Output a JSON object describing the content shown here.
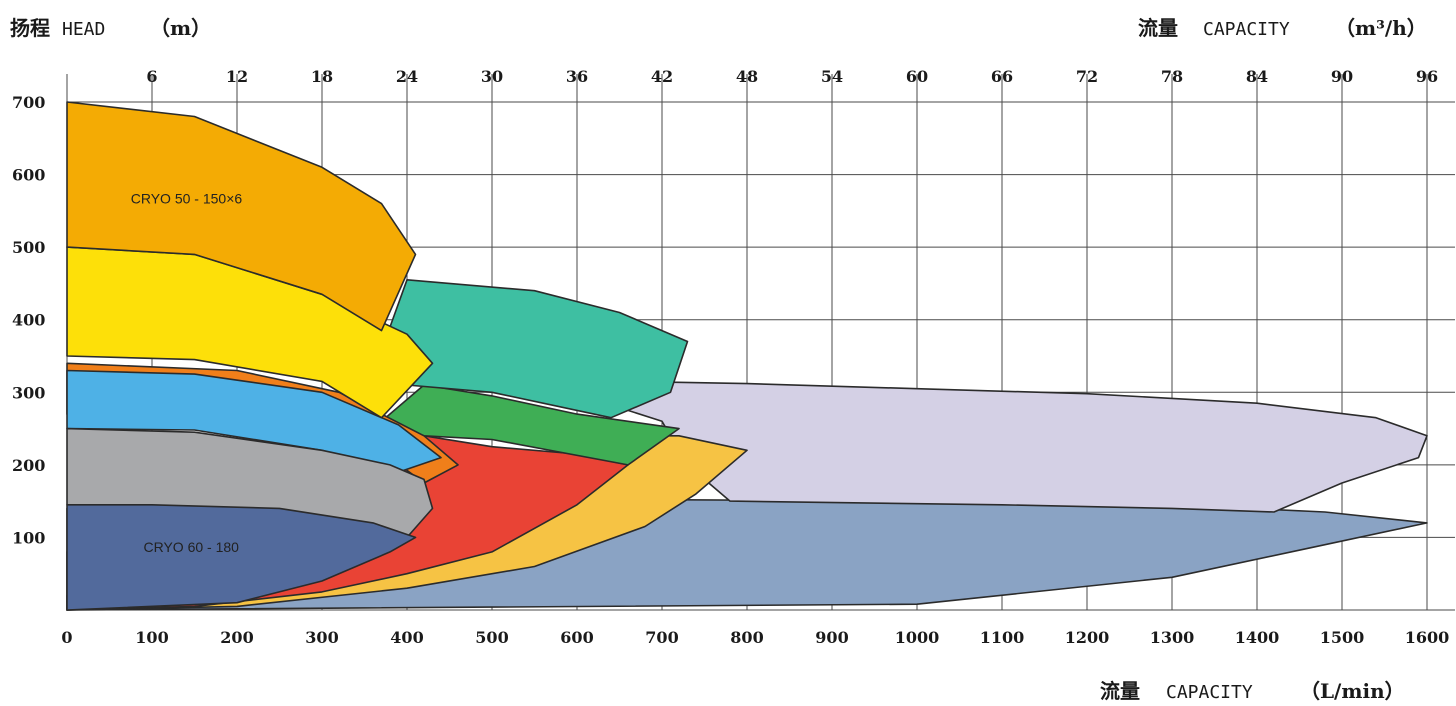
{
  "chart_data": {
    "type": "area",
    "y_axis": {
      "title_cn": "扬程",
      "title_en": "HEAD",
      "unit": "（m）",
      "range": [
        0,
        700
      ],
      "ticks": [
        100,
        200,
        300,
        400,
        500,
        600,
        700
      ]
    },
    "x_axis_bottom": {
      "title_cn": "流量",
      "title_en": "CAPACITY",
      "unit": "（L/min）",
      "range": [
        0,
        1600
      ],
      "ticks": [
        0,
        100,
        200,
        300,
        400,
        500,
        600,
        700,
        800,
        900,
        1000,
        1100,
        1200,
        1300,
        1400,
        1500,
        1600
      ]
    },
    "x_axis_top": {
      "title_cn": "流量",
      "title_en": "CAPACITY",
      "unit": "（m³/h）",
      "range": [
        0,
        96
      ],
      "ticks": [
        6,
        12,
        18,
        24,
        30,
        36,
        42,
        48,
        54,
        60,
        66,
        72,
        78,
        84,
        90,
        96
      ]
    },
    "grid": true,
    "zones": [
      {
        "label": "",
        "color": "#8aa3c4",
        "outline": [
          [
            0,
            0
          ],
          [
            1000,
            8
          ],
          [
            1300,
            45
          ],
          [
            1460,
            85
          ],
          [
            1600,
            120
          ],
          [
            1480,
            135
          ],
          [
            1300,
            145
          ],
          [
            1000,
            150
          ],
          [
            700,
            152
          ],
          [
            200,
            150
          ],
          [
            0,
            140
          ]
        ]
      },
      {
        "label": "",
        "color": "#d4d0e5",
        "outline": [
          [
            780,
            150
          ],
          [
            1100,
            145
          ],
          [
            1300,
            140
          ],
          [
            1420,
            135
          ],
          [
            1500,
            175
          ],
          [
            1590,
            210
          ],
          [
            1600,
            240
          ],
          [
            1540,
            265
          ],
          [
            1400,
            285
          ],
          [
            1200,
            298
          ],
          [
            1000,
            305
          ],
          [
            800,
            312
          ],
          [
            660,
            315
          ],
          [
            620,
            290
          ],
          [
            700,
            260
          ],
          [
            730,
            200
          ]
        ]
      },
      {
        "label": "",
        "color": "#f6c344",
        "outline": [
          [
            0,
            0
          ],
          [
            200,
            5
          ],
          [
            400,
            30
          ],
          [
            550,
            60
          ],
          [
            680,
            115
          ],
          [
            740,
            160
          ],
          [
            800,
            220
          ],
          [
            720,
            240
          ],
          [
            650,
            240
          ],
          [
            620,
            200
          ],
          [
            540,
            160
          ],
          [
            420,
            140
          ],
          [
            200,
            120
          ],
          [
            0,
            80
          ]
        ]
      },
      {
        "label": "",
        "color": "#e94335",
        "outline": [
          [
            0,
            0
          ],
          [
            150,
            5
          ],
          [
            300,
            25
          ],
          [
            400,
            50
          ],
          [
            500,
            80
          ],
          [
            600,
            145
          ],
          [
            660,
            200
          ],
          [
            600,
            215
          ],
          [
            500,
            225
          ],
          [
            420,
            240
          ],
          [
            400,
            210
          ],
          [
            380,
            150
          ],
          [
            350,
            110
          ],
          [
            300,
            80
          ],
          [
            200,
            40
          ],
          [
            0,
            20
          ]
        ]
      },
      {
        "label": "",
        "color": "#3fae55",
        "outline": [
          [
            420,
            240
          ],
          [
            500,
            235
          ],
          [
            660,
            200
          ],
          [
            720,
            250
          ],
          [
            600,
            270
          ],
          [
            500,
            295
          ],
          [
            420,
            310
          ],
          [
            370,
            260
          ]
        ]
      },
      {
        "label": "",
        "color": "#3ebfa2",
        "outline": [
          [
            400,
            310
          ],
          [
            500,
            300
          ],
          [
            640,
            265
          ],
          [
            710,
            300
          ],
          [
            730,
            370
          ],
          [
            650,
            410
          ],
          [
            550,
            440
          ],
          [
            400,
            455
          ],
          [
            380,
            390
          ]
        ]
      },
      {
        "label": "",
        "color": "#f07f1a",
        "outline": [
          [
            0,
            340
          ],
          [
            200,
            330
          ],
          [
            320,
            300
          ],
          [
            420,
            240
          ],
          [
            460,
            200
          ],
          [
            420,
            175
          ],
          [
            380,
            210
          ],
          [
            300,
            240
          ],
          [
            150,
            260
          ],
          [
            0,
            270
          ]
        ]
      },
      {
        "label": "",
        "color": "#4eb1e6",
        "outline": [
          [
            0,
            250
          ],
          [
            150,
            248
          ],
          [
            300,
            220
          ],
          [
            390,
            190
          ],
          [
            440,
            210
          ],
          [
            390,
            255
          ],
          [
            300,
            300
          ],
          [
            150,
            325
          ],
          [
            0,
            330
          ]
        ]
      },
      {
        "label": "",
        "color": "#a8a9ab",
        "outline": [
          [
            0,
            145
          ],
          [
            200,
            140
          ],
          [
            320,
            120
          ],
          [
            400,
            100
          ],
          [
            430,
            140
          ],
          [
            420,
            180
          ],
          [
            380,
            200
          ],
          [
            300,
            220
          ],
          [
            150,
            245
          ],
          [
            0,
            250
          ]
        ]
      },
      {
        "label": "CRYO 60 - 180",
        "color": "#526a9c",
        "outline": [
          [
            0,
            0
          ],
          [
            200,
            10
          ],
          [
            300,
            40
          ],
          [
            380,
            80
          ],
          [
            410,
            100
          ],
          [
            360,
            120
          ],
          [
            250,
            140
          ],
          [
            100,
            145
          ],
          [
            0,
            145
          ]
        ]
      },
      {
        "label": "",
        "color": "#fde009",
        "outline": [
          [
            0,
            350
          ],
          [
            150,
            345
          ],
          [
            300,
            315
          ],
          [
            370,
            265
          ],
          [
            430,
            340
          ],
          [
            400,
            380
          ],
          [
            300,
            435
          ],
          [
            150,
            490
          ],
          [
            0,
            500
          ]
        ]
      },
      {
        "label": "CRYO 50 - 150×6",
        "color": "#f4ab04",
        "outline": [
          [
            0,
            500
          ],
          [
            150,
            490
          ],
          [
            300,
            435
          ],
          [
            370,
            385
          ],
          [
            410,
            490
          ],
          [
            370,
            560
          ],
          [
            300,
            610
          ],
          [
            150,
            680
          ],
          [
            0,
            700
          ]
        ]
      }
    ]
  }
}
